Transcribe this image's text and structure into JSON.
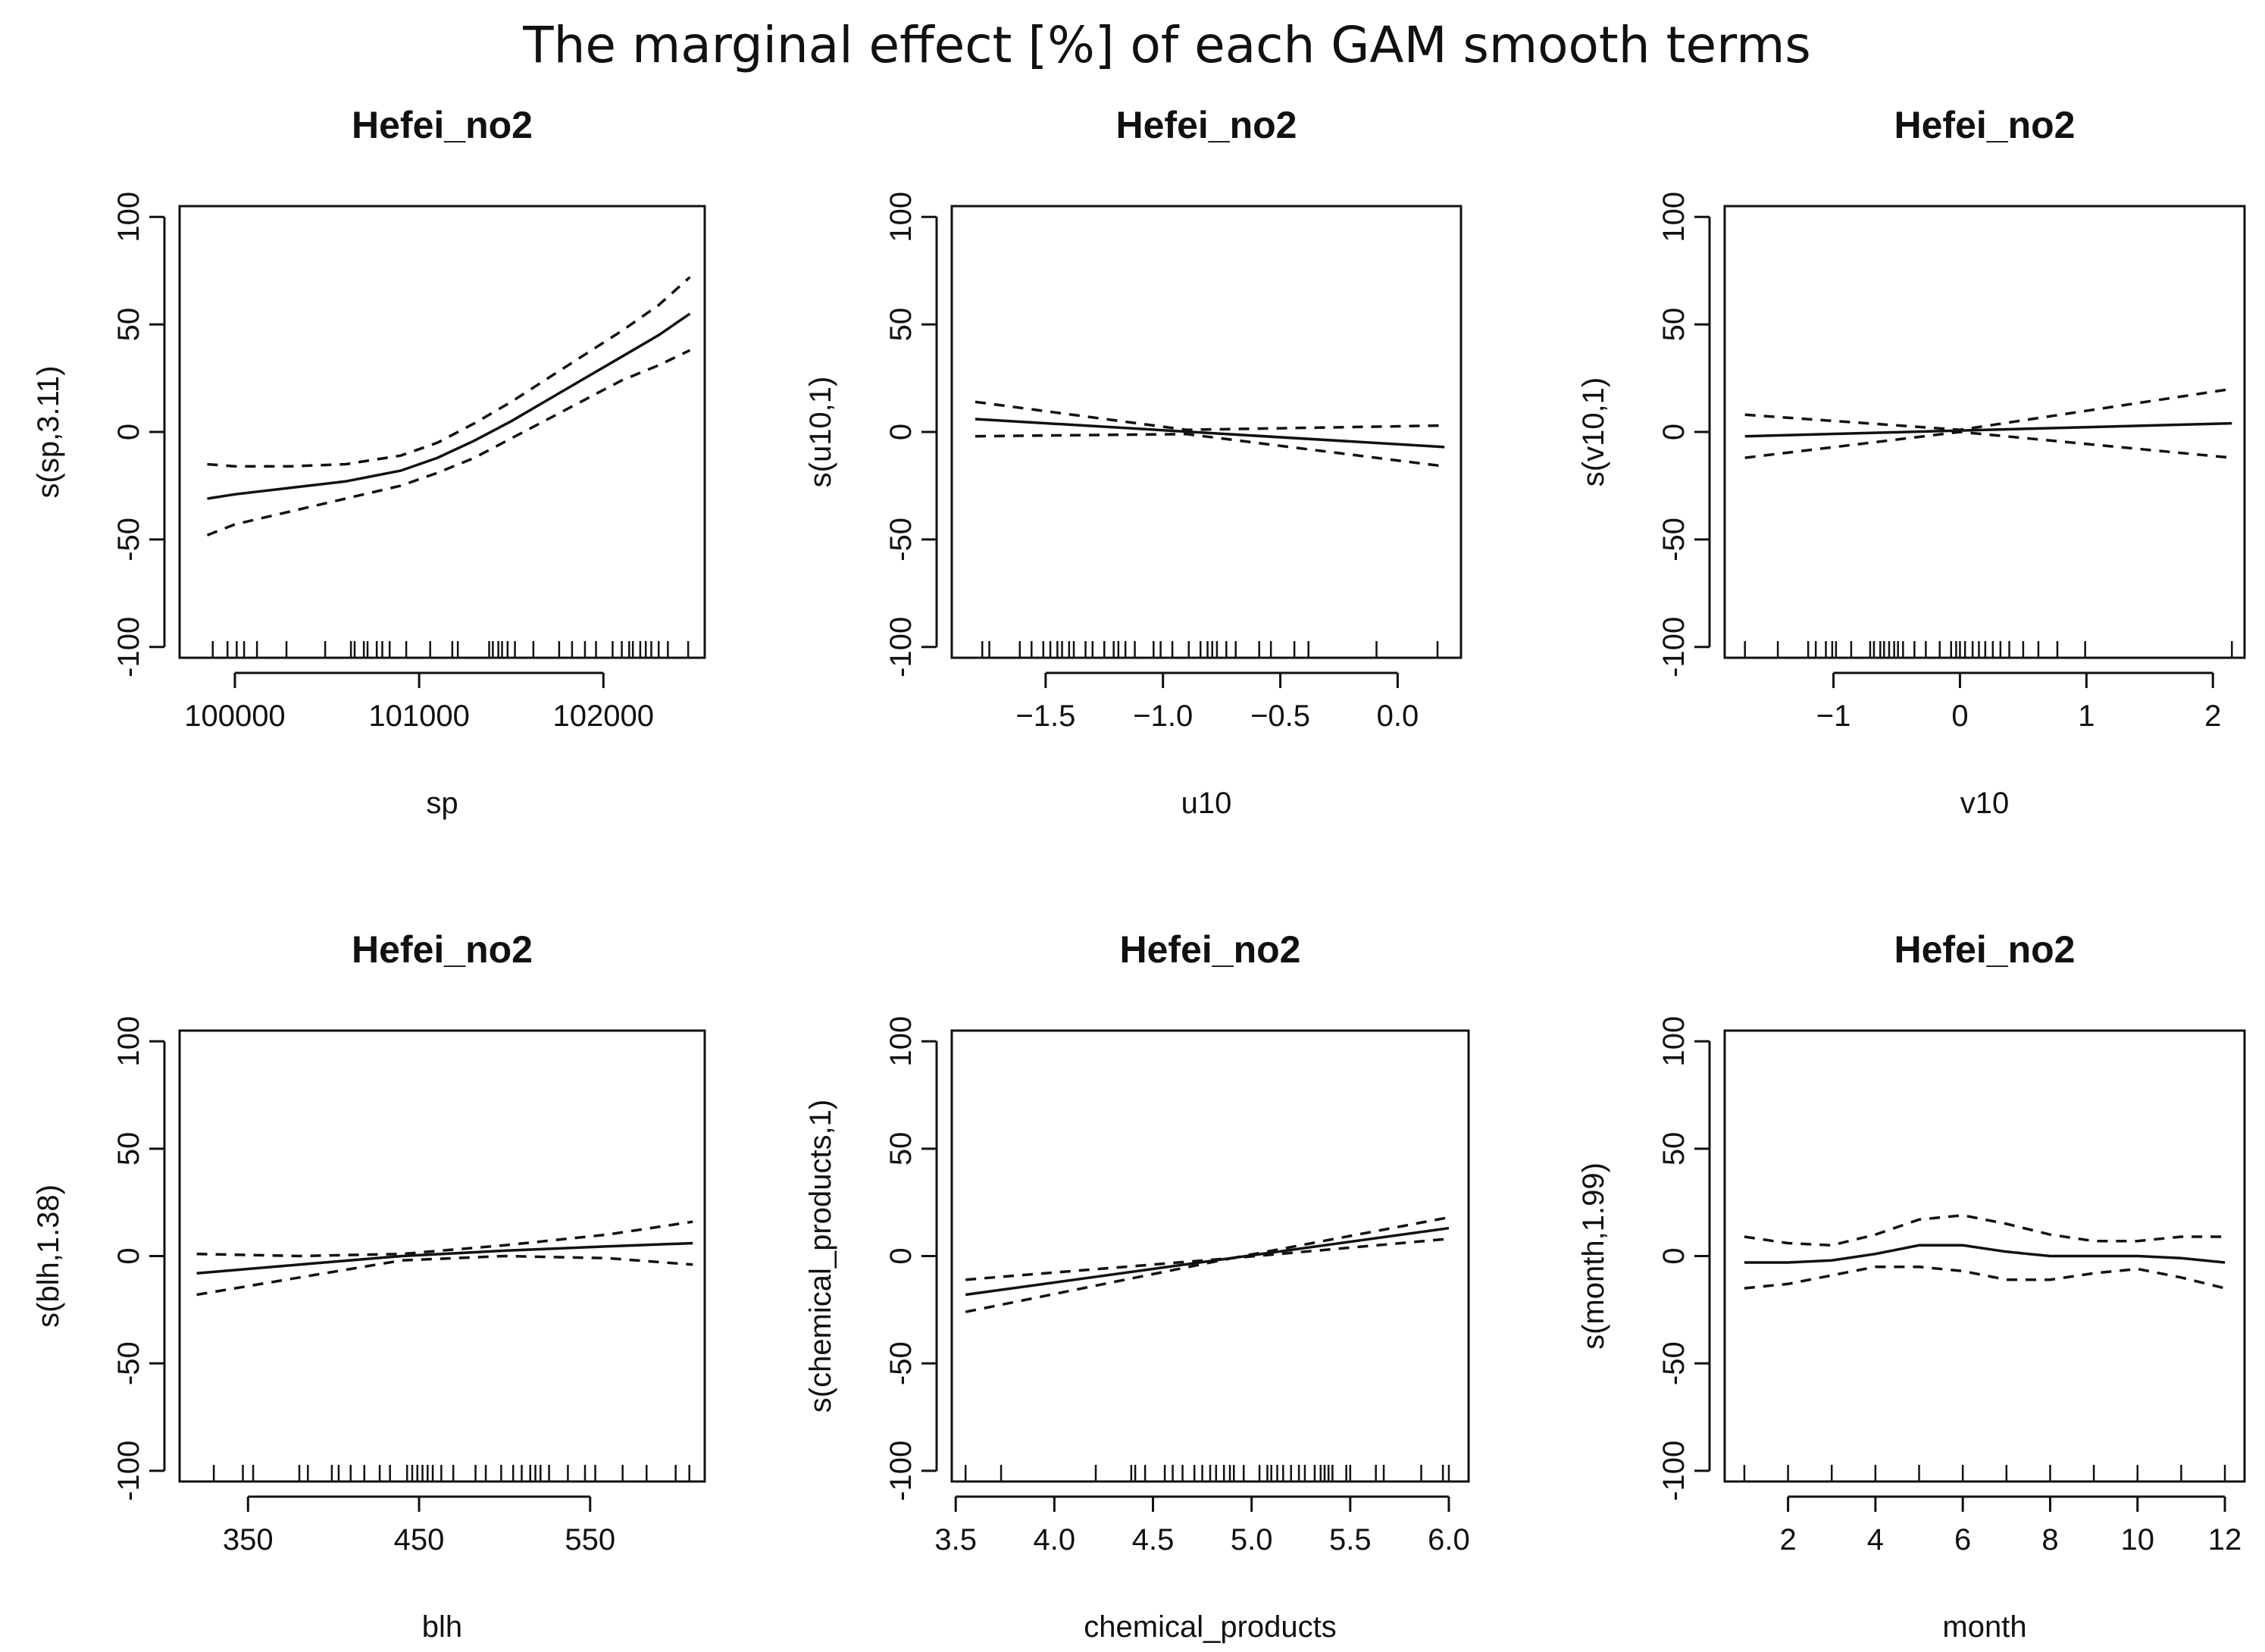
{
  "figure_title": "The marginal effect [%] of each GAM smooth terms",
  "chart_data": [
    {
      "type": "line",
      "title": "Hefei_no2",
      "xlabel": "sp",
      "ylabel": "s(sp,3.11)",
      "xlim": [
        99700,
        102550
      ],
      "ylim": [
        -105,
        105
      ],
      "xticks": [
        100000,
        101000,
        102000
      ],
      "xtick_labels": [
        "100000",
        "101000",
        "102000"
      ],
      "yticks": [
        -100,
        -50,
        0,
        50,
        100
      ],
      "ytick_labels": [
        "-100",
        "-50",
        "0",
        "50",
        "100"
      ],
      "series": [
        {
          "name": "fit",
          "style": "solid",
          "x": [
            99850,
            100000,
            100300,
            100600,
            100900,
            101100,
            101300,
            101500,
            101700,
            101900,
            102100,
            102300,
            102470
          ],
          "y": [
            -31,
            -29,
            -26,
            -23,
            -18,
            -12,
            -4,
            5,
            15,
            25,
            35,
            45,
            55
          ]
        },
        {
          "name": "upper",
          "style": "dashed",
          "x": [
            99850,
            100000,
            100300,
            100600,
            100900,
            101100,
            101300,
            101500,
            101700,
            101900,
            102100,
            102300,
            102470
          ],
          "y": [
            -15,
            -16,
            -16,
            -15,
            -11,
            -5,
            4,
            14,
            25,
            36,
            47,
            59,
            72
          ]
        },
        {
          "name": "lower",
          "style": "dashed",
          "x": [
            99850,
            100000,
            100300,
            100600,
            100900,
            101100,
            101300,
            101500,
            101700,
            101900,
            102100,
            102300,
            102470
          ],
          "y": [
            -48,
            -43,
            -37,
            -31,
            -25,
            -19,
            -12,
            -3,
            6,
            15,
            24,
            31,
            38
          ]
        }
      ],
      "rug": [
        99880,
        99960,
        100010,
        100050,
        100120,
        100280,
        100490,
        100630,
        100650,
        100700,
        100720,
        100770,
        100800,
        100840,
        100930,
        101060,
        101180,
        101210,
        101380,
        101400,
        101430,
        101450,
        101480,
        101520,
        101620,
        101760,
        101830,
        101900,
        101960,
        102050,
        102100,
        102140,
        102160,
        102200,
        102230,
        102260,
        102300,
        102350,
        102460
      ]
    },
    {
      "type": "line",
      "title": "Hefei_no2",
      "xlabel": "u10",
      "ylabel": "s(u10,1)",
      "xlim": [
        -1.9,
        0.27
      ],
      "ylim": [
        -105,
        105
      ],
      "xticks": [
        -1.5,
        -1.0,
        -0.5,
        0.0
      ],
      "xtick_labels": [
        "−1.5",
        "−1.0",
        "−0.5",
        "0.0"
      ],
      "yticks": [
        -100,
        -50,
        0,
        50,
        100
      ],
      "ytick_labels": [
        "-100",
        "-50",
        "0",
        "50",
        "100"
      ],
      "series": [
        {
          "name": "fit",
          "style": "solid",
          "x": [
            -1.8,
            0.2
          ],
          "y": [
            6,
            -7
          ]
        },
        {
          "name": "upper",
          "style": "dashed",
          "x": [
            -1.8,
            -0.9,
            0.2
          ],
          "y": [
            14,
            1,
            3
          ]
        },
        {
          "name": "lower",
          "style": "dashed",
          "x": [
            -1.8,
            -0.9,
            0.2
          ],
          "y": [
            -2,
            -1,
            -16
          ]
        }
      ],
      "rug": [
        -1.77,
        -1.74,
        -1.61,
        -1.56,
        -1.51,
        -1.48,
        -1.45,
        -1.43,
        -1.4,
        -1.38,
        -1.33,
        -1.3,
        -1.25,
        -1.21,
        -1.19,
        -1.16,
        -1.12,
        -1.04,
        -1.01,
        -0.96,
        -0.89,
        -0.84,
        -0.81,
        -0.79,
        -0.77,
        -0.73,
        -0.69,
        -0.59,
        -0.54,
        -0.44,
        -0.38,
        -0.09,
        0.17
      ]
    },
    {
      "type": "line",
      "title": "Hefei_no2",
      "xlabel": "v10",
      "ylabel": "s(v10,1)",
      "xlim": [
        -1.86,
        2.25
      ],
      "ylim": [
        -105,
        105
      ],
      "xticks": [
        -1,
        0,
        1,
        2
      ],
      "xtick_labels": [
        "−1",
        "0",
        "1",
        "2"
      ],
      "yticks": [
        -100,
        -50,
        0,
        50,
        100
      ],
      "ytick_labels": [
        "-100",
        "-50",
        "0",
        "50",
        "100"
      ],
      "series": [
        {
          "name": "fit",
          "style": "solid",
          "x": [
            -1.7,
            2.15
          ],
          "y": [
            -2,
            4
          ]
        },
        {
          "name": "upper",
          "style": "dashed",
          "x": [
            -1.7,
            0,
            2.15
          ],
          "y": [
            8,
            1,
            20
          ]
        },
        {
          "name": "lower",
          "style": "dashed",
          "x": [
            -1.7,
            0,
            2.15
          ],
          "y": [
            -12,
            0,
            -12
          ]
        }
      ],
      "rug": [
        -1.7,
        -1.44,
        -1.2,
        -1.14,
        -1.06,
        -1.01,
        -0.98,
        -0.86,
        -0.71,
        -0.68,
        -0.63,
        -0.6,
        -0.56,
        -0.52,
        -0.49,
        -0.45,
        -0.36,
        -0.27,
        -0.16,
        -0.07,
        -0.03,
        0.0,
        0.04,
        0.1,
        0.15,
        0.2,
        0.26,
        0.32,
        0.39,
        0.5,
        0.62,
        0.77,
        0.99,
        2.15
      ]
    },
    {
      "type": "line",
      "title": "Hefei_no2",
      "xlabel": "blh",
      "ylabel": "s(blh,1.38)",
      "xlim": [
        310,
        617
      ],
      "ylim": [
        -105,
        105
      ],
      "xticks": [
        350,
        450,
        550
      ],
      "xtick_labels": [
        "350",
        "450",
        "550"
      ],
      "yticks": [
        -100,
        -50,
        0,
        50,
        100
      ],
      "ytick_labels": [
        "-100",
        "-50",
        "0",
        "50",
        "100"
      ],
      "series": [
        {
          "name": "fit",
          "style": "solid",
          "x": [
            320,
            380,
            440,
            500,
            560,
            610
          ],
          "y": [
            -8,
            -4,
            0,
            2.5,
            4.5,
            6
          ]
        },
        {
          "name": "upper",
          "style": "dashed",
          "x": [
            320,
            380,
            440,
            500,
            560,
            610
          ],
          "y": [
            1,
            0,
            1,
            5,
            10,
            16
          ]
        },
        {
          "name": "lower",
          "style": "dashed",
          "x": [
            320,
            380,
            440,
            500,
            560,
            610
          ],
          "y": [
            -18,
            -10,
            -2,
            0,
            -1,
            -4
          ]
        }
      ],
      "rug": [
        330,
        347,
        353,
        380,
        385,
        399,
        403,
        410,
        418,
        427,
        433,
        443,
        446,
        449,
        452,
        455,
        458,
        463,
        470,
        483,
        489,
        498,
        505,
        510,
        515,
        518,
        521,
        526,
        537,
        547,
        553,
        569,
        583,
        600,
        608
      ]
    },
    {
      "type": "line",
      "title": "Hefei_no2",
      "xlabel": "chemical_products",
      "ylabel": "s(chemical_products,1)",
      "xlim": [
        3.48,
        6.1
      ],
      "ylim": [
        -105,
        105
      ],
      "xticks": [
        3.5,
        4.0,
        4.5,
        5.0,
        5.5,
        6.0
      ],
      "xtick_labels": [
        "3.5",
        "4.0",
        "4.5",
        "5.0",
        "5.5",
        "6.0"
      ],
      "yticks": [
        -100,
        -50,
        0,
        50,
        100
      ],
      "ytick_labels": [
        "-100",
        "-50",
        "0",
        "50",
        "100"
      ],
      "series": [
        {
          "name": "fit",
          "style": "solid",
          "x": [
            3.55,
            6.0
          ],
          "y": [
            -18,
            13
          ]
        },
        {
          "name": "upper",
          "style": "dashed",
          "x": [
            3.55,
            4.9,
            6.0
          ],
          "y": [
            -11,
            -1,
            18
          ]
        },
        {
          "name": "lower",
          "style": "dashed",
          "x": [
            3.55,
            4.9,
            6.0
          ],
          "y": [
            -26,
            -1,
            8
          ]
        }
      ],
      "rug": [
        3.55,
        3.73,
        4.21,
        4.39,
        4.41,
        4.46,
        4.56,
        4.6,
        4.65,
        4.71,
        4.75,
        4.79,
        4.82,
        4.86,
        4.89,
        4.91,
        4.96,
        5.04,
        5.08,
        5.1,
        5.13,
        5.16,
        5.2,
        5.24,
        5.27,
        5.32,
        5.35,
        5.37,
        5.39,
        5.41,
        5.48,
        5.5,
        5.63,
        5.67,
        5.86,
        5.97,
        6.0
      ]
    },
    {
      "type": "line",
      "title": "Hefei_no2",
      "xlabel": "month",
      "ylabel": "s(month,1.99)",
      "xlim": [
        0.55,
        12.45
      ],
      "ylim": [
        -105,
        105
      ],
      "xticks": [
        2,
        4,
        6,
        8,
        10,
        12
      ],
      "xtick_labels": [
        "2",
        "4",
        "6",
        "8",
        "10",
        "12"
      ],
      "yticks": [
        -100,
        -50,
        0,
        50,
        100
      ],
      "ytick_labels": [
        "-100",
        "-50",
        "0",
        "50",
        "100"
      ],
      "series": [
        {
          "name": "fit",
          "style": "solid",
          "x": [
            1,
            2,
            3,
            4,
            5,
            6,
            7,
            8,
            9,
            10,
            11,
            12
          ],
          "y": [
            -3,
            -3,
            -2,
            1,
            5,
            5,
            2,
            0,
            0,
            0,
            -1,
            -3
          ]
        },
        {
          "name": "upper",
          "style": "dashed",
          "x": [
            1,
            2,
            3,
            4,
            5,
            6,
            7,
            8,
            9,
            10,
            11,
            12
          ],
          "y": [
            9,
            6,
            5,
            10,
            17,
            19,
            15,
            10,
            7,
            7,
            9,
            9
          ]
        },
        {
          "name": "lower",
          "style": "dashed",
          "x": [
            1,
            2,
            3,
            4,
            5,
            6,
            7,
            8,
            9,
            10,
            11,
            12
          ],
          "y": [
            -15,
            -13,
            -9,
            -5,
            -5,
            -7,
            -11,
            -11,
            -8,
            -6,
            -10,
            -15
          ]
        }
      ],
      "rug": [
        1,
        2,
        3,
        4,
        5,
        6,
        7,
        8,
        9,
        10,
        11,
        12
      ]
    }
  ]
}
